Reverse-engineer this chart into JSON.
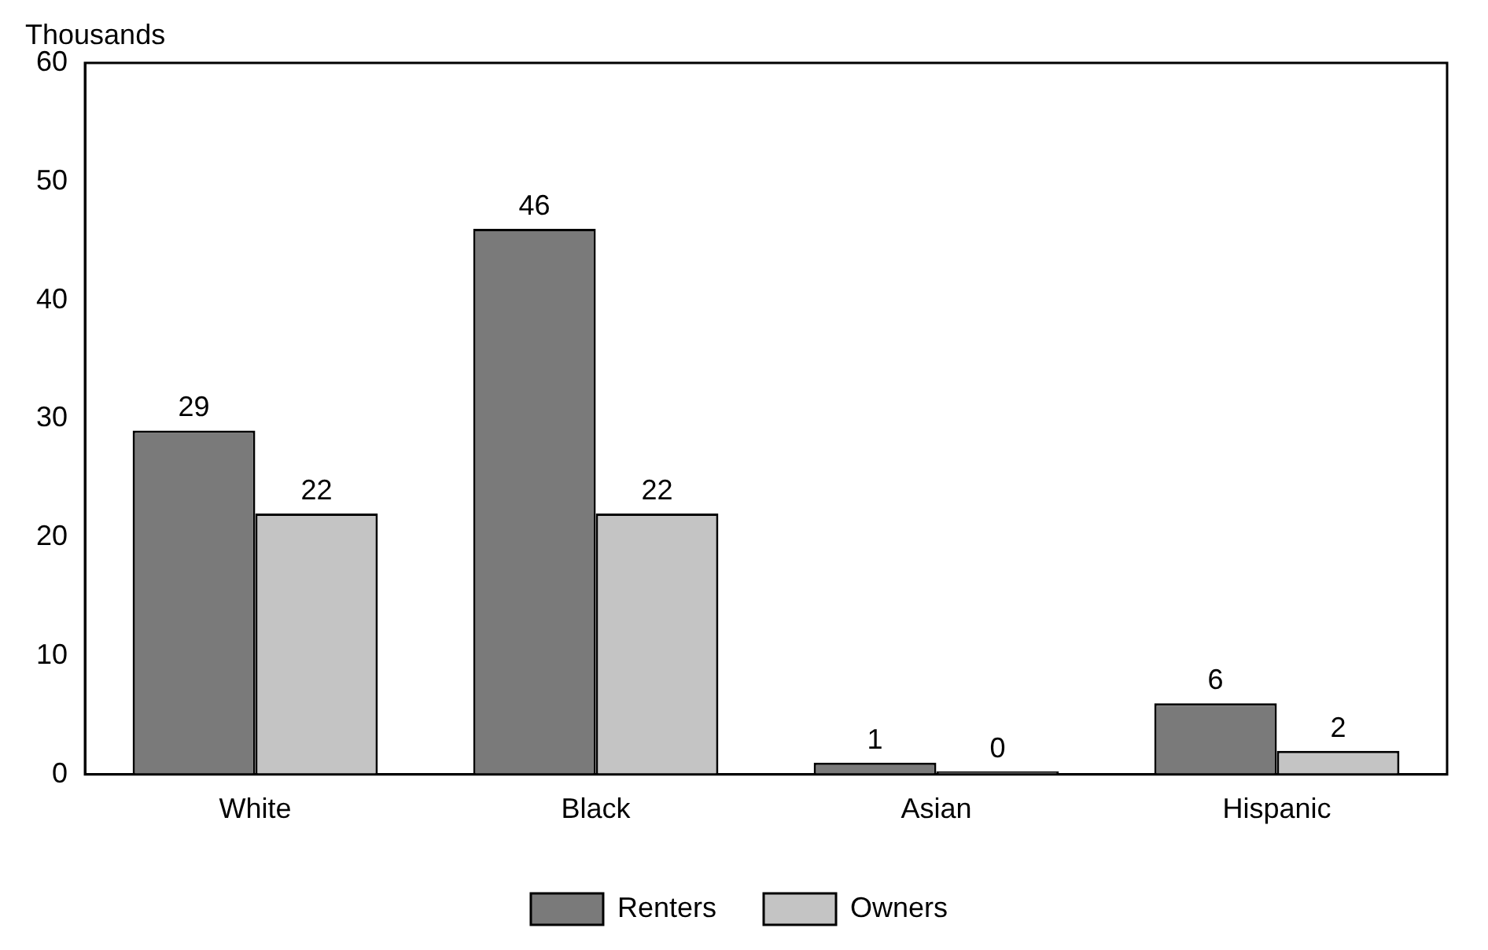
{
  "chart_data": {
    "type": "bar",
    "ylabel": "Thousands",
    "categories": [
      "White",
      "Black",
      "Asian",
      "Hispanic"
    ],
    "series": [
      {
        "name": "Renters",
        "color": "#7a7a7a",
        "values": [
          29,
          46,
          1,
          6
        ]
      },
      {
        "name": "Owners",
        "color": "#c4c4c4",
        "values": [
          22,
          22,
          0,
          2
        ]
      }
    ],
    "ylim": [
      0,
      60
    ],
    "yticks": [
      0,
      10,
      20,
      30,
      40,
      50,
      60
    ],
    "grid": false,
    "legend": "bottom",
    "data_labels": true
  }
}
